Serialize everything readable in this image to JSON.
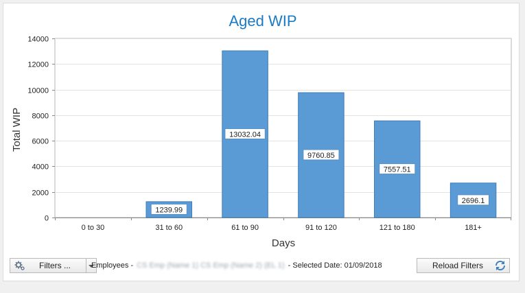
{
  "chart_data": {
    "type": "bar",
    "title": "Aged WIP",
    "xlabel": "Days",
    "ylabel": "Total WIP",
    "categories": [
      "0 to 30",
      "31 to 60",
      "61 to 90",
      "91 to 120",
      "121 to 180",
      "181+"
    ],
    "values": [
      0,
      1239.99,
      13032.04,
      9760.85,
      7557.51,
      2696.1
    ],
    "data_labels": [
      "",
      "1239.99",
      "13032.04",
      "9760.85",
      "7557.51",
      "2696.1"
    ],
    "ylim": [
      0,
      14000
    ],
    "yticks": [
      0,
      2000,
      4000,
      6000,
      8000,
      10000,
      12000,
      14000
    ],
    "grid": true,
    "bar_color": "#5b9bd5",
    "title_color": "#1a7bc4"
  },
  "footer": {
    "filters_label": "Filters ...",
    "status_prefix": "Employees -",
    "status_redacted": "CS Emp (Name 1) CS Emp (Name 2) (EL 1)",
    "status_suffix": "- Selected Date: 01/09/2018",
    "reload_label": "Reload Filters"
  },
  "icons": {
    "filters": "gear-icon",
    "dropdown": "chevron-down-icon",
    "reload": "refresh-icon"
  }
}
